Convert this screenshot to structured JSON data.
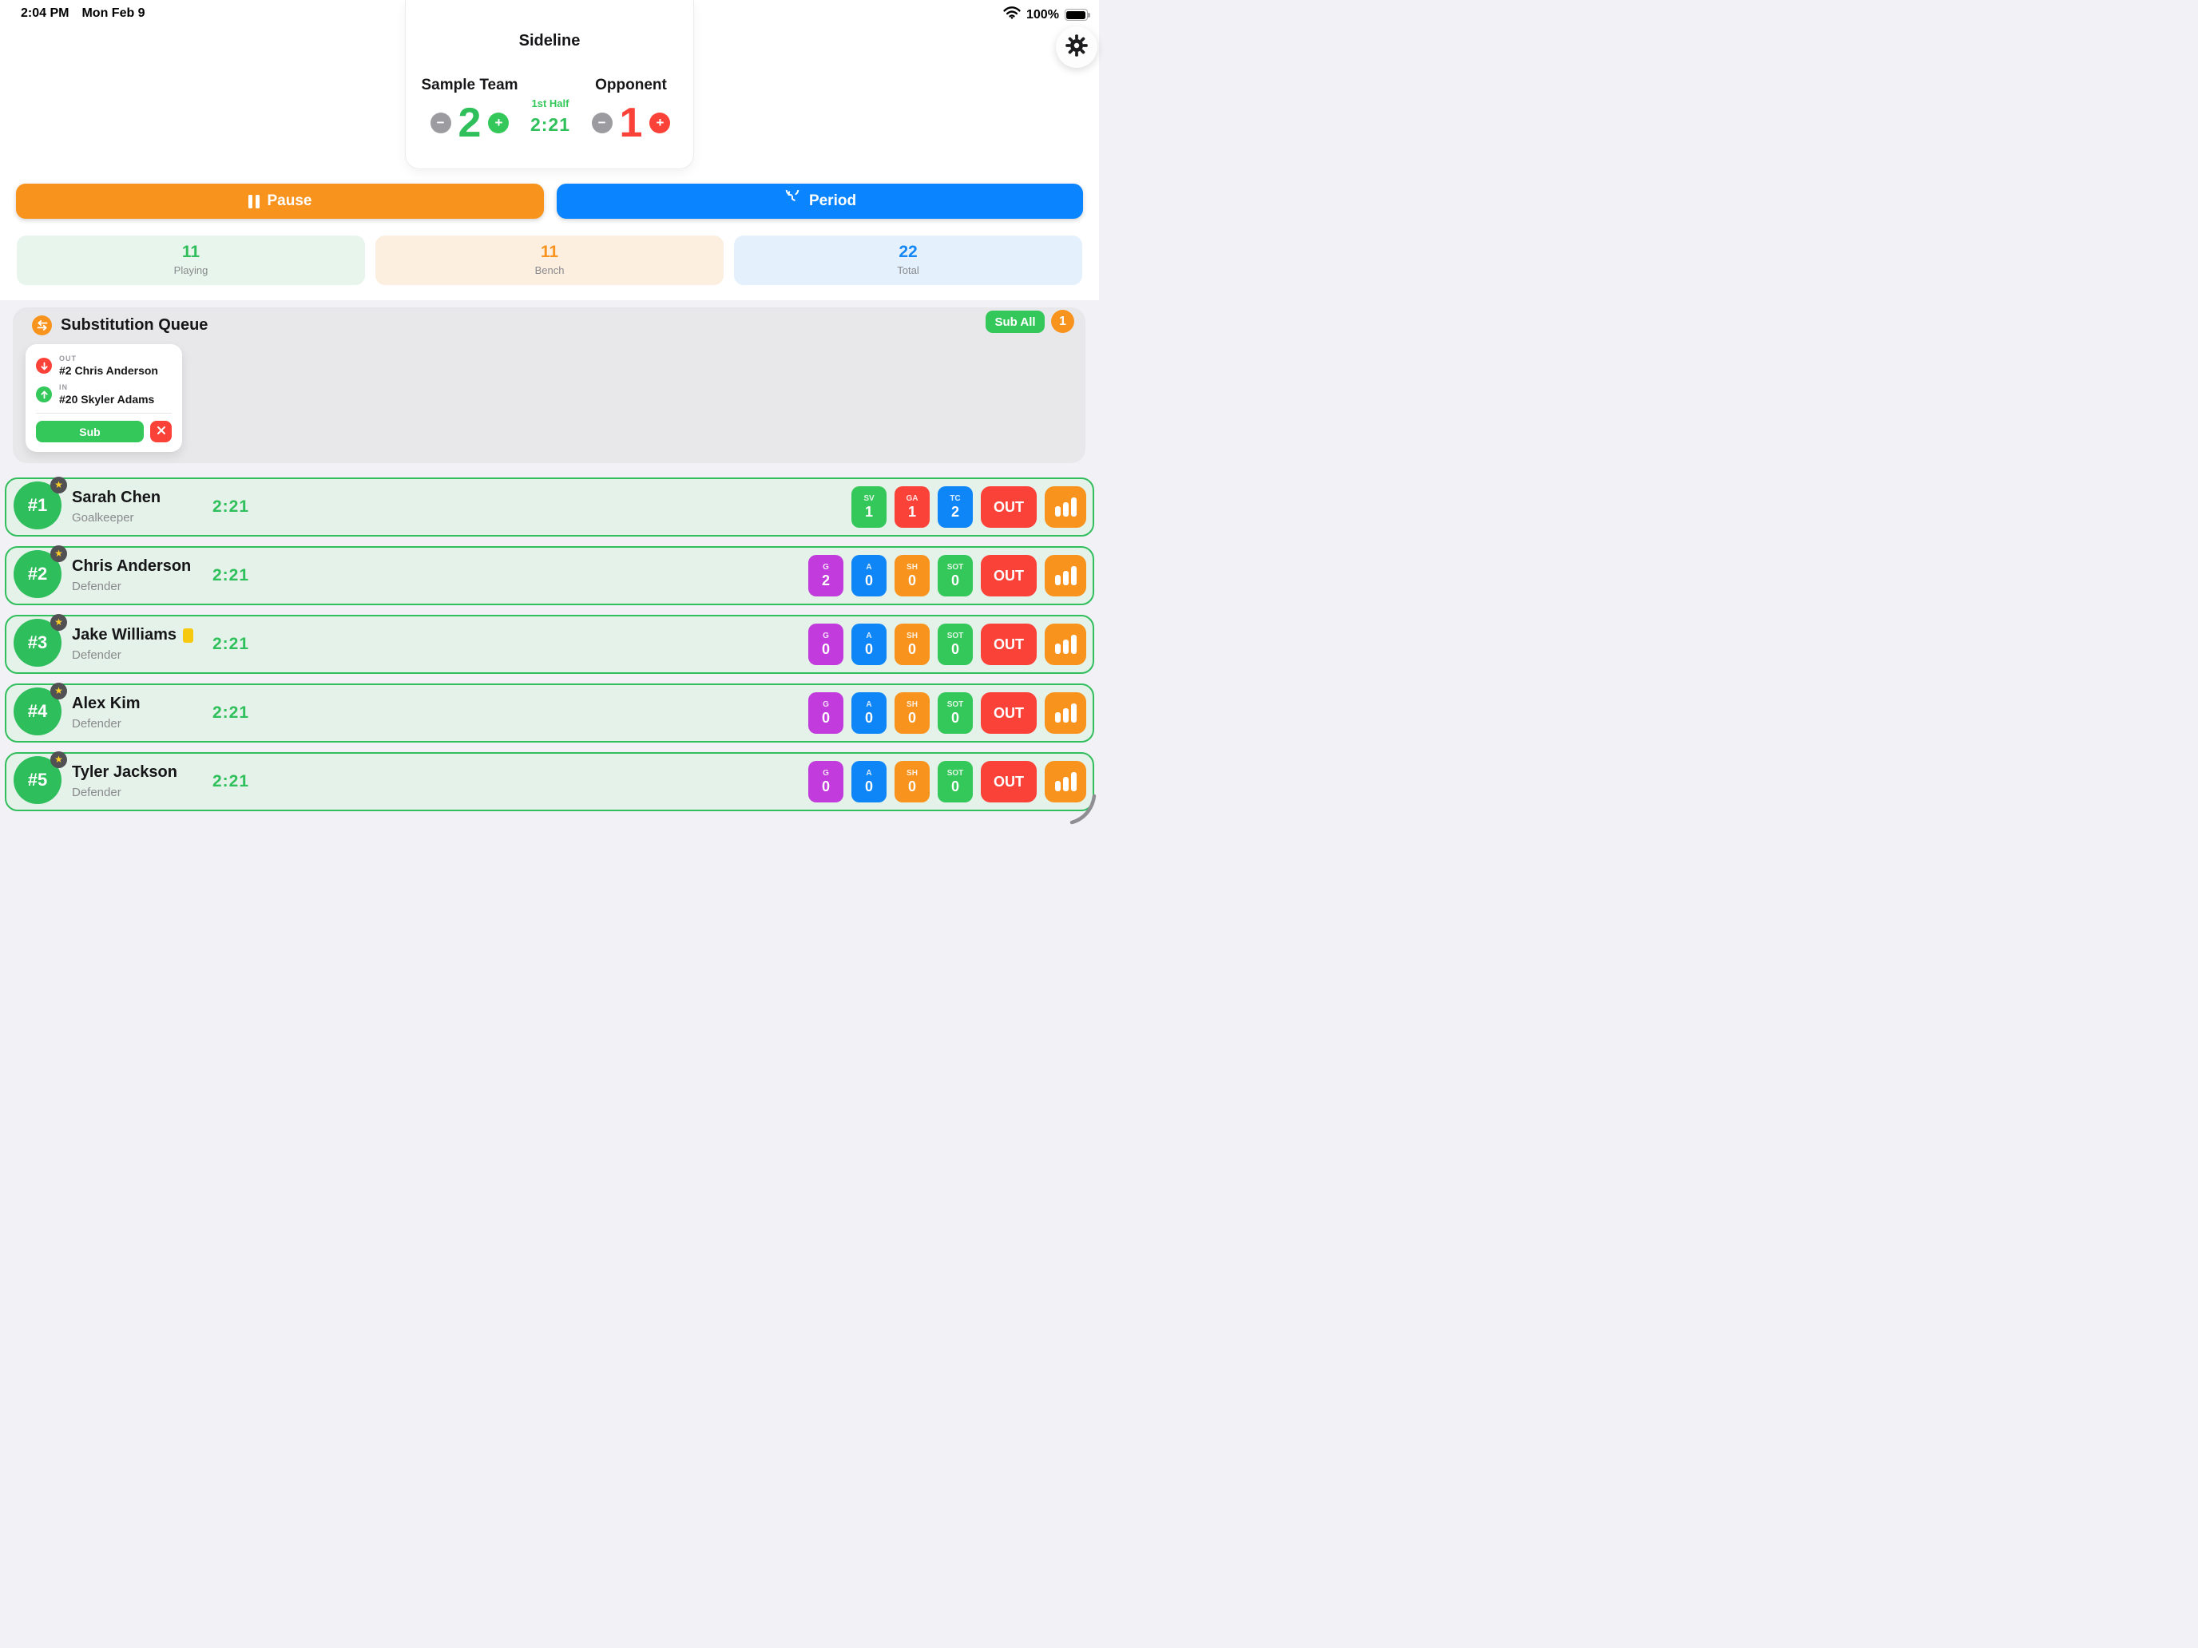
{
  "status_bar": {
    "time": "2:04 PM",
    "date": "Mon Feb 9",
    "battery_percent": "100%"
  },
  "scoreboard": {
    "app_title": "Sideline",
    "home_team": "Sample Team",
    "home_score": "2",
    "away_team": "Opponent",
    "away_score": "1",
    "period": "1st Half",
    "game_clock": "2:21"
  },
  "controls": {
    "pause": "Pause",
    "period": "Period"
  },
  "summary_cards": [
    {
      "value": "11",
      "label": "Playing"
    },
    {
      "value": "11",
      "label": "Bench"
    },
    {
      "value": "22",
      "label": "Total"
    }
  ],
  "substitution_queue": {
    "title": "Substitution Queue",
    "sub_all": "Sub All",
    "pending_count": "1",
    "card": {
      "out_label": "OUT",
      "out_player": "#2 Chris Anderson",
      "in_label": "IN",
      "in_player": "#20 Skyler Adams",
      "confirm": "Sub"
    }
  },
  "players": [
    {
      "number": "#1",
      "name": "Sarah Chen",
      "position": "Goalkeeper",
      "time": "2:21",
      "starter": true,
      "yellow_card": false,
      "out_label": "OUT",
      "stats": [
        {
          "label": "SV",
          "value": "1",
          "color": "green"
        },
        {
          "label": "GA",
          "value": "1",
          "color": "red"
        },
        {
          "label": "TC",
          "value": "2",
          "color": "blue"
        }
      ]
    },
    {
      "number": "#2",
      "name": "Chris Anderson",
      "position": "Defender",
      "time": "2:21",
      "starter": true,
      "yellow_card": false,
      "out_label": "OUT",
      "stats": [
        {
          "label": "G",
          "value": "2",
          "color": "purple"
        },
        {
          "label": "A",
          "value": "0",
          "color": "blue"
        },
        {
          "label": "SH",
          "value": "0",
          "color": "orange"
        },
        {
          "label": "SOT",
          "value": "0",
          "color": "green"
        }
      ]
    },
    {
      "number": "#3",
      "name": "Jake Williams",
      "position": "Defender",
      "time": "2:21",
      "starter": true,
      "yellow_card": true,
      "out_label": "OUT",
      "stats": [
        {
          "label": "G",
          "value": "0",
          "color": "purple"
        },
        {
          "label": "A",
          "value": "0",
          "color": "blue"
        },
        {
          "label": "SH",
          "value": "0",
          "color": "orange"
        },
        {
          "label": "SOT",
          "value": "0",
          "color": "green"
        }
      ]
    },
    {
      "number": "#4",
      "name": "Alex Kim",
      "position": "Defender",
      "time": "2:21",
      "starter": true,
      "yellow_card": false,
      "out_label": "OUT",
      "stats": [
        {
          "label": "G",
          "value": "0",
          "color": "purple"
        },
        {
          "label": "A",
          "value": "0",
          "color": "blue"
        },
        {
          "label": "SH",
          "value": "0",
          "color": "orange"
        },
        {
          "label": "SOT",
          "value": "0",
          "color": "green"
        }
      ]
    },
    {
      "number": "#5",
      "name": "Tyler Jackson",
      "position": "Defender",
      "time": "2:21",
      "starter": true,
      "yellow_card": false,
      "out_label": "OUT",
      "stats": [
        {
          "label": "G",
          "value": "0",
          "color": "purple"
        },
        {
          "label": "A",
          "value": "0",
          "color": "blue"
        },
        {
          "label": "SH",
          "value": "0",
          "color": "orange"
        },
        {
          "label": "SOT",
          "value": "0",
          "color": "green"
        }
      ]
    }
  ],
  "colors": {
    "green": "#34C759",
    "red": "#FB4238",
    "blue": "#0F86F8",
    "orange": "#F8941E",
    "purple": "#C23BDC",
    "yellow_card": "#F6C90E",
    "period_blue": "#0A84FF",
    "row_bg": "#E4F2E9",
    "row_border": "#31BE5D",
    "panel_bg": "#E8E8EA",
    "page_bg": "#F1F1F6",
    "text_gray": "#8A8A8E"
  }
}
